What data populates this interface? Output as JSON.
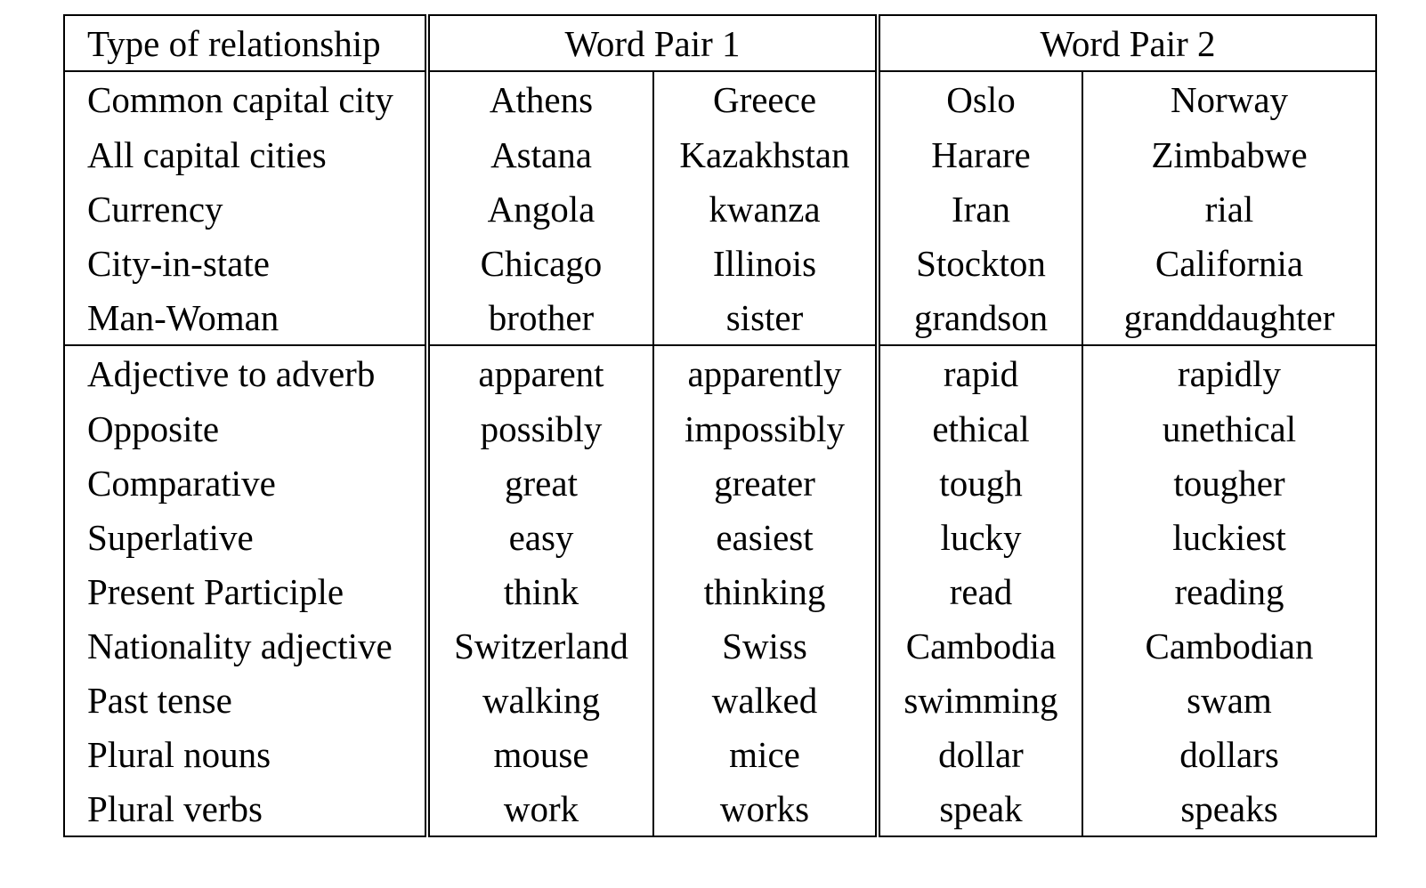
{
  "table": {
    "headers": {
      "type": "Type of relationship",
      "pair1": "Word Pair 1",
      "pair2": "Word Pair 2"
    },
    "semantic_rows": [
      {
        "type": "Common capital city",
        "p1a": "Athens",
        "p1b": "Greece",
        "p2a": "Oslo",
        "p2b": "Norway"
      },
      {
        "type": "All capital cities",
        "p1a": "Astana",
        "p1b": "Kazakhstan",
        "p2a": "Harare",
        "p2b": "Zimbabwe"
      },
      {
        "type": "Currency",
        "p1a": "Angola",
        "p1b": "kwanza",
        "p2a": "Iran",
        "p2b": "rial"
      },
      {
        "type": "City-in-state",
        "p1a": "Chicago",
        "p1b": "Illinois",
        "p2a": "Stockton",
        "p2b": "California"
      },
      {
        "type": "Man-Woman",
        "p1a": "brother",
        "p1b": "sister",
        "p2a": "grandson",
        "p2b": "granddaughter"
      }
    ],
    "syntactic_rows": [
      {
        "type": "Adjective to adverb",
        "p1a": "apparent",
        "p1b": "apparently",
        "p2a": "rapid",
        "p2b": "rapidly"
      },
      {
        "type": "Opposite",
        "p1a": "possibly",
        "p1b": "impossibly",
        "p2a": "ethical",
        "p2b": "unethical"
      },
      {
        "type": "Comparative",
        "p1a": "great",
        "p1b": "greater",
        "p2a": "tough",
        "p2b": "tougher"
      },
      {
        "type": "Superlative",
        "p1a": "easy",
        "p1b": "easiest",
        "p2a": "lucky",
        "p2b": "luckiest"
      },
      {
        "type": "Present Participle",
        "p1a": "think",
        "p1b": "thinking",
        "p2a": "read",
        "p2b": "reading"
      },
      {
        "type": "Nationality adjective",
        "p1a": "Switzerland",
        "p1b": "Swiss",
        "p2a": "Cambodia",
        "p2b": "Cambodian"
      },
      {
        "type": "Past tense",
        "p1a": "walking",
        "p1b": "walked",
        "p2a": "swimming",
        "p2b": "swam"
      },
      {
        "type": "Plural nouns",
        "p1a": "mouse",
        "p1b": "mice",
        "p2a": "dollar",
        "p2b": "dollars"
      },
      {
        "type": "Plural verbs",
        "p1a": "work",
        "p1b": "works",
        "p2a": "speak",
        "p2b": "speaks"
      }
    ]
  }
}
